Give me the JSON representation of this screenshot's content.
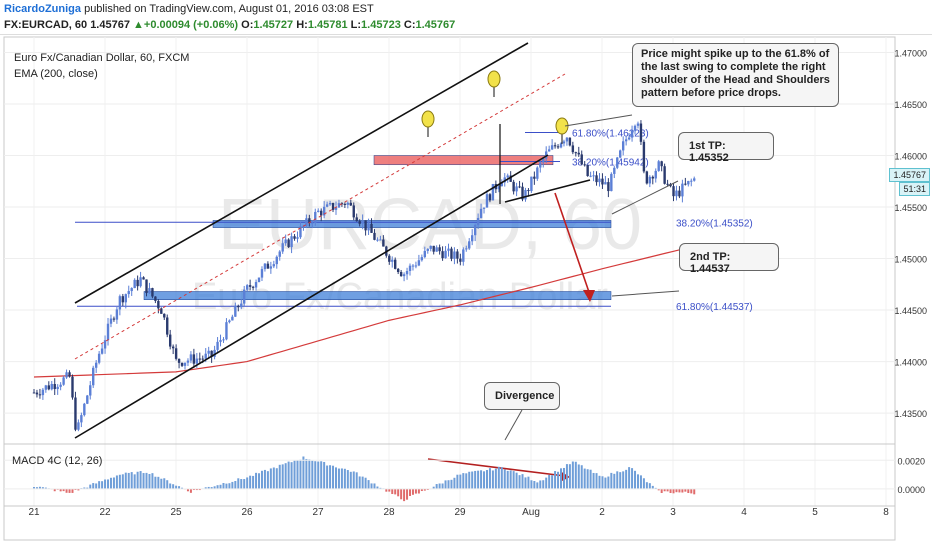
{
  "header": {
    "author": "RicardoZuniga",
    "published": " published on TradingView.com, August 01, 2016 03:08 EST",
    "symbol": "FX:EURCAD, 60",
    "last": "1.45767",
    "change": "▲+0.00094 (+0.06%)",
    "o_label": "O:",
    "o": "1.45727",
    "h_label": "H:",
    "h": "1.45781",
    "l_label": "L:",
    "l": "1.45723",
    "c_label": "C:",
    "c": "1.45767"
  },
  "legend": {
    "title": "Euro Fx/Canadian Dollar, 60, FXCM",
    "ema": "EMA (200, close)",
    "macd": "MACD 4C (12, 26)"
  },
  "watermark": {
    "symbol": "EURCAD, 60",
    "name": "Euro Fx/Canadian Dollar"
  },
  "current_price_tag": {
    "price": "1.45767",
    "countdown": "51:31"
  },
  "annotations": {
    "note1": "Price might spike up to the  61.8% of the last swing to complete the right shoulder of the Head and Shoulders pattern before price drops.",
    "note2": "1st TP: 1.45352",
    "note3": "2nd TP: 1.44537",
    "note4": "Divergence",
    "fib_labels": [
      "61.80%(1.46223)",
      "38.20%(1.45942)",
      "38.20%(1.45352)",
      "61.80%(1.44537)"
    ]
  },
  "colors": {
    "bull": "#5b7fd6",
    "bear": "#2a3a6e",
    "ema": "#d43b3b",
    "channel": "#111111",
    "fib": "#3b4fc8",
    "zone_red": "#e85454",
    "zone_blue": "#3f7fd8",
    "macd_pos": "#6f9ed8",
    "macd_neg": "#e06b6b",
    "divergence": "#b32020",
    "shoulder": "#f2e24a"
  },
  "chart_data": {
    "type": "candlestick",
    "title": "Euro Fx/Canadian Dollar, 60, FXCM",
    "x_tick_labels": [
      "21",
      "22",
      "25",
      "26",
      "27",
      "28",
      "29",
      "Aug",
      "2",
      "3",
      "4",
      "5",
      "8"
    ],
    "y_tick_labels": [
      "1.47000",
      "1.46500",
      "1.46000",
      "1.45500",
      "1.45000",
      "1.44500",
      "1.44000",
      "1.43500"
    ],
    "ylim": [
      1.432,
      1.4715
    ],
    "macd_ticks": [
      "0.0020",
      "0.0000"
    ],
    "price_path_keypoints": [
      {
        "day": 21.0,
        "price": 1.437
      },
      {
        "day": 21.5,
        "price": 1.4385
      },
      {
        "day": 21.6,
        "price": 1.433
      },
      {
        "day": 21.9,
        "price": 1.4405
      },
      {
        "day": 22.2,
        "price": 1.446
      },
      {
        "day": 22.5,
        "price": 1.448
      },
      {
        "day": 22.8,
        "price": 1.445
      },
      {
        "day": 23.0,
        "price": 1.44
      },
      {
        "day": 23.5,
        "price": 1.4405
      },
      {
        "day": 24.0,
        "price": 1.447
      },
      {
        "day": 24.5,
        "price": 1.451
      },
      {
        "day": 25.0,
        "price": 1.4545
      },
      {
        "day": 25.4,
        "price": 1.4555
      },
      {
        "day": 25.8,
        "price": 1.452
      },
      {
        "day": 26.2,
        "price": 1.4485
      },
      {
        "day": 26.6,
        "price": 1.451
      },
      {
        "day": 27.0,
        "price": 1.45
      },
      {
        "day": 27.3,
        "price": 1.455
      },
      {
        "day": 27.6,
        "price": 1.458
      },
      {
        "day": 27.9,
        "price": 1.456
      },
      {
        "day": 28.2,
        "price": 1.46
      },
      {
        "day": 28.5,
        "price": 1.462
      },
      {
        "day": 28.8,
        "price": 1.458
      },
      {
        "day": 29.1,
        "price": 1.457
      },
      {
        "day": 29.3,
        "price": 1.461
      },
      {
        "day": 29.5,
        "price": 1.464
      },
      {
        "day": 29.6,
        "price": 1.4575
      },
      {
        "day": 29.8,
        "price": 1.459
      },
      {
        "day": 30.0,
        "price": 1.456
      },
      {
        "day": 30.3,
        "price": 1.4577
      }
    ],
    "ema200_keypoints": [
      {
        "day": 21.0,
        "price": 1.4385
      },
      {
        "day": 23.0,
        "price": 1.439
      },
      {
        "day": 24.0,
        "price": 1.44
      },
      {
        "day": 25.0,
        "price": 1.442
      },
      {
        "day": 26.0,
        "price": 1.444
      },
      {
        "day": 27.0,
        "price": 1.4455
      },
      {
        "day": 28.0,
        "price": 1.4472
      },
      {
        "day": 29.0,
        "price": 1.449
      },
      {
        "day": 30.3,
        "price": 1.4512
      }
    ],
    "fib_levels": [
      1.46223,
      1.45942,
      1.45352,
      1.44537
    ],
    "macd_keypoints": [
      {
        "day": 21.0,
        "value": 0.0002
      },
      {
        "day": 21.5,
        "value": -0.0003
      },
      {
        "day": 22.2,
        "value": 0.001
      },
      {
        "day": 22.6,
        "value": 0.0012
      },
      {
        "day": 23.2,
        "value": -0.0002
      },
      {
        "day": 24.0,
        "value": 0.0008
      },
      {
        "day": 24.8,
        "value": 0.0022
      },
      {
        "day": 25.5,
        "value": 0.0012
      },
      {
        "day": 26.2,
        "value": -0.0008
      },
      {
        "day": 27.0,
        "value": 0.001
      },
      {
        "day": 27.6,
        "value": 0.0015
      },
      {
        "day": 28.1,
        "value": 0.0005
      },
      {
        "day": 28.6,
        "value": 0.0019
      },
      {
        "day": 29.0,
        "value": 0.0008
      },
      {
        "day": 29.4,
        "value": 0.0015
      },
      {
        "day": 29.8,
        "value": -0.0002
      },
      {
        "day": 30.3,
        "value": -0.0003
      }
    ]
  }
}
